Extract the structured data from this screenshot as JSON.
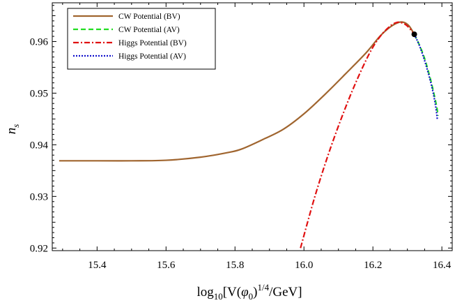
{
  "chart_data": {
    "type": "line",
    "title": "",
    "xlabel": "log10[V(φ0)^1/4/GeV]",
    "xlabel_parts": {
      "prefix": "log",
      "sub": "10",
      "open": "[V(",
      "phi": "φ",
      "phi_sub": "0",
      "close": ")",
      "sup": "1/4",
      "suffix": "/GeV]"
    },
    "ylabel": "n_s",
    "ylabel_parts": {
      "main": "n",
      "sub": "s"
    },
    "xlim": [
      15.27,
      16.43
    ],
    "ylim": [
      0.9195,
      0.9675
    ],
    "xticks": [
      15.4,
      15.6,
      15.8,
      16.0,
      16.2,
      16.4
    ],
    "xtick_labels": [
      "15.4",
      "15.6",
      "15.8",
      "16.0",
      "16.2",
      "16.4"
    ],
    "yticks": [
      0.92,
      0.93,
      0.94,
      0.95,
      0.96
    ],
    "ytick_labels": [
      "0.92",
      "0.93",
      "0.94",
      "0.95",
      "0.96"
    ],
    "grid": false,
    "legend_position": "top-left",
    "series": [
      {
        "name": "CW Potential (BV)",
        "color": "#a0652f",
        "dash": "solid",
        "x": [
          15.29,
          15.4,
          15.5,
          15.6,
          15.7,
          15.78,
          15.82,
          15.88,
          15.94,
          16.0,
          16.06,
          16.12,
          16.18,
          16.22,
          16.25,
          16.275,
          16.29,
          16.305,
          16.32
        ],
        "y": [
          0.9369,
          0.9369,
          0.9369,
          0.937,
          0.9376,
          0.9385,
          0.9392,
          0.941,
          0.943,
          0.946,
          0.9497,
          0.9537,
          0.9578,
          0.961,
          0.9628,
          0.9637,
          0.9637,
          0.963,
          0.9614
        ]
      },
      {
        "name": "CW Potential (AV)",
        "color": "#22dd22",
        "dash": "dashed",
        "x": [
          16.32,
          16.335,
          16.35,
          16.365,
          16.375,
          16.385,
          16.389
        ],
        "y": [
          0.9614,
          0.9593,
          0.9567,
          0.9532,
          0.9505,
          0.9474,
          0.9456
        ]
      },
      {
        "name": "Higgs Potential (BV)",
        "color": "#e01010",
        "dash": "dashdot",
        "x": [
          15.99,
          16.03,
          16.07,
          16.11,
          16.15,
          16.19,
          16.22,
          16.25,
          16.27,
          16.285,
          16.3,
          16.32
        ],
        "y": [
          0.92,
          0.9296,
          0.938,
          0.9454,
          0.952,
          0.9577,
          0.9609,
          0.963,
          0.9637,
          0.9636,
          0.963,
          0.9614
        ]
      },
      {
        "name": "Higgs Potential (AV)",
        "color": "#1010cc",
        "dash": "dotted",
        "x": [
          16.32,
          16.335,
          16.35,
          16.365,
          16.375,
          16.383,
          16.387
        ],
        "y": [
          0.9614,
          0.9592,
          0.9563,
          0.9528,
          0.95,
          0.947,
          0.9448
        ]
      }
    ],
    "markers": [
      {
        "x": 16.32,
        "y": 0.9614,
        "color": "#000000"
      }
    ]
  }
}
